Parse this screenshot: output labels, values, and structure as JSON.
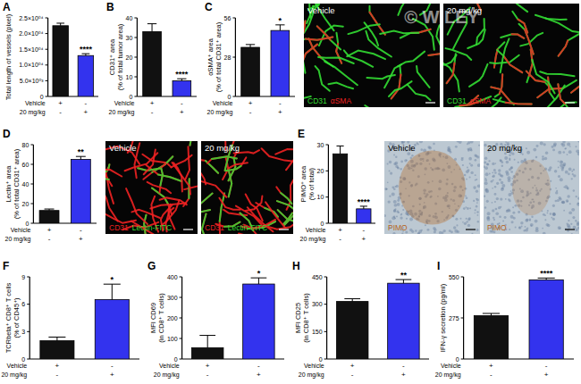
{
  "chart_data": [
    {
      "type": "bar",
      "title": "A",
      "ylabel": [
        "Total length of vessels (pixel)"
      ],
      "categories": [
        null,
        null
      ],
      "values": [
        22500,
        13000
      ],
      "errors": [
        800,
        600
      ],
      "colors": [
        "#111111",
        "#3333ee"
      ],
      "ylim": [
        0,
        25000
      ],
      "yticks": [
        0,
        {
          "value": 5000,
          "label": "5.0×10⁰³"
        },
        {
          "value": 10000,
          "label": "1.0×10⁰⁴"
        },
        {
          "value": 15000,
          "label": "1.5×10⁰⁴"
        },
        {
          "value": 20000,
          "label": "2.0×10⁰⁴"
        },
        {
          "value": 25000,
          "label": "2.5×10⁰⁴"
        }
      ],
      "annotations": [
        {
          "text": "****",
          "index": 1
        }
      ],
      "x_table": [
        {
          "label": "Vehicle",
          "marks": [
            "+",
            "-"
          ]
        },
        {
          "label": "20 mg/kg",
          "marks": [
            "-",
            "+"
          ]
        }
      ]
    },
    {
      "type": "bar",
      "title": "B",
      "ylabel": [
        "CD31⁺ area",
        "(% of total tumor area)"
      ],
      "categories": [
        null,
        null
      ],
      "values": [
        33,
        8
      ],
      "errors": [
        4,
        1
      ],
      "colors": [
        "#111111",
        "#3333ee"
      ],
      "ylim": [
        0,
        40
      ],
      "yticks": [
        0,
        10,
        20,
        30,
        40
      ],
      "annotations": [
        {
          "text": "****",
          "index": 1
        }
      ],
      "x_table": [
        {
          "label": "Vehicle",
          "marks": [
            "+",
            "-"
          ]
        },
        {
          "label": "20 mg/kg",
          "marks": [
            "-",
            "+"
          ]
        }
      ]
    },
    {
      "type": "bar",
      "title": "C",
      "ylabel": [
        "αSMA⁺ area",
        "(% of total CD31⁺ area)"
      ],
      "categories": [
        null,
        null
      ],
      "values": [
        35,
        47
      ],
      "errors": [
        2,
        4
      ],
      "colors": [
        "#111111",
        "#3333ee"
      ],
      "ylim": [
        0,
        56
      ],
      "yticks": [
        0,
        28,
        56
      ],
      "annotations": [
        {
          "text": "*",
          "index": 1
        }
      ],
      "x_table": [
        {
          "label": "Vehicle",
          "marks": [
            "+",
            "-"
          ]
        },
        {
          "label": "20 mg/kg",
          "marks": [
            "-",
            "+"
          ]
        }
      ]
    },
    {
      "type": "bar",
      "title": "D",
      "ylabel": [
        "Lectin⁺ area",
        "(% of total CD31⁺ area)"
      ],
      "categories": [
        null,
        null
      ],
      "values": [
        13,
        65
      ],
      "errors": [
        1.5,
        3
      ],
      "colors": [
        "#111111",
        "#3333ee"
      ],
      "ylim": [
        0,
        80
      ],
      "yticks": [
        0,
        20,
        40,
        60,
        80
      ],
      "annotations": [
        {
          "text": "**",
          "index": 1
        }
      ],
      "x_table": [
        {
          "label": "Vehicle",
          "marks": [
            "+",
            "-"
          ]
        },
        {
          "label": "20 mg/kg",
          "marks": [
            "-",
            "+"
          ]
        }
      ]
    },
    {
      "type": "bar",
      "title": "E",
      "ylabel": [
        "PIMO⁺ area",
        "(% of total)"
      ],
      "categories": [
        null,
        null
      ],
      "values": [
        26.5,
        5.5
      ],
      "errors": [
        3,
        1
      ],
      "colors": [
        "#111111",
        "#3333ee"
      ],
      "ylim": [
        0,
        30
      ],
      "yticks": [
        0,
        10,
        20,
        30
      ],
      "annotations": [
        {
          "text": "****",
          "index": 1
        }
      ],
      "x_table": [
        {
          "label": "Vehicle",
          "marks": [
            "+",
            "-"
          ]
        },
        {
          "label": "20 mg/kg",
          "marks": [
            "-",
            "+"
          ]
        }
      ]
    },
    {
      "type": "bar",
      "title": "F",
      "ylabel": [
        "TCRbeta⁺ CD8⁺ T cells",
        "(% of CD45⁺)"
      ],
      "categories": [
        null,
        null
      ],
      "values": [
        2,
        6.5
      ],
      "errors": [
        0.4,
        1.7
      ],
      "colors": [
        "#111111",
        "#3333ee"
      ],
      "ylim": [
        0,
        9
      ],
      "yticks": [
        0,
        3,
        6,
        9
      ],
      "annotations": [
        {
          "text": "*",
          "index": 1
        }
      ],
      "x_table": [
        {
          "label": "Vehicle",
          "marks": [
            "+",
            "-"
          ]
        },
        {
          "label": "20 mg/kg",
          "marks": [
            "-",
            "+"
          ]
        }
      ]
    },
    {
      "type": "bar",
      "title": "G",
      "ylabel": [
        "MFI CD69",
        "(in CD8⁺ T cells)"
      ],
      "categories": [
        null,
        null
      ],
      "values": [
        55,
        365
      ],
      "errors": [
        60,
        30
      ],
      "colors": [
        "#111111",
        "#3333ee"
      ],
      "ylim": [
        0,
        400
      ],
      "yticks": [
        0,
        100,
        200,
        300,
        400
      ],
      "annotations": [
        {
          "text": "*",
          "index": 1
        }
      ],
      "x_table": [
        {
          "label": "Vehicle",
          "marks": [
            "+",
            "-"
          ]
        },
        {
          "label": "20 mg/kg",
          "marks": [
            "-",
            "+"
          ]
        }
      ]
    },
    {
      "type": "bar",
      "title": "H",
      "ylabel": [
        "MFI CD25",
        "(in CD8⁺ T cells)"
      ],
      "categories": [
        null,
        null
      ],
      "values": [
        315,
        415
      ],
      "errors": [
        15,
        20
      ],
      "colors": [
        "#111111",
        "#3333ee"
      ],
      "ylim": [
        0,
        450
      ],
      "yticks": [
        0,
        150,
        300,
        450
      ],
      "annotations": [
        {
          "text": "**",
          "index": 1
        }
      ],
      "x_table": [
        {
          "label": "Vehicle",
          "marks": [
            "+",
            "-"
          ]
        },
        {
          "label": "20 mg/kg",
          "marks": [
            "-",
            "+"
          ]
        }
      ]
    },
    {
      "type": "bar",
      "title": "I",
      "ylabel": [
        "IFN-γ secretion (pg/ml)"
      ],
      "categories": [
        null,
        null
      ],
      "values": [
        290,
        530
      ],
      "errors": [
        15,
        12
      ],
      "colors": [
        "#111111",
        "#3333ee"
      ],
      "ylim": [
        0,
        550
      ],
      "yticks": [
        0,
        275,
        550
      ],
      "annotations": [
        {
          "text": "****",
          "index": 1
        }
      ],
      "x_table": [
        {
          "label": "Vehicle",
          "marks": [
            "+",
            "-"
          ]
        },
        {
          "label": "20 mg/kg",
          "marks": [
            "-",
            "+"
          ]
        }
      ]
    }
  ],
  "images": [
    {
      "panel": "C",
      "type": "fluorescence",
      "tiles": [
        {
          "title": "Vehicle"
        },
        {
          "title": "20 mg/kg"
        }
      ],
      "stains": [
        {
          "text": "CD31",
          "color": "#33dd33"
        },
        {
          "text": "αSMA",
          "color": "#ee2222"
        }
      ]
    },
    {
      "panel": "D",
      "type": "fluorescence",
      "tiles": [
        {
          "title": "Vehicle"
        },
        {
          "title": "20 mg/kg"
        }
      ],
      "stains": [
        {
          "text": "CD31",
          "color": "#ee2222"
        },
        {
          "text": "Lectin-FITC",
          "color": "#33dd33"
        }
      ]
    },
    {
      "panel": "E",
      "type": "brightfield",
      "tiles": [
        {
          "title": "Vehicle"
        },
        {
          "title": "20 mg/kg"
        }
      ],
      "stains": [
        {
          "text": "PIMO",
          "color": "#b5651d"
        }
      ]
    }
  ],
  "watermark": "© WILEY"
}
